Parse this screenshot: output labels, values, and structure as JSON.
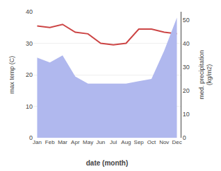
{
  "chart_data": {
    "type": "line",
    "categories": [
      "Jan",
      "Feb",
      "Mar",
      "Apr",
      "May",
      "Jun",
      "Jul",
      "Aug",
      "Sep",
      "Oct",
      "Nov",
      "Dec"
    ],
    "series": [
      {
        "type": "area",
        "axis": "y2",
        "color": "#b0b8ee",
        "values": [
          34,
          32,
          35,
          26,
          23,
          23,
          23,
          23,
          24,
          25,
          37,
          51
        ]
      },
      {
        "type": "line",
        "color": "#cc4444",
        "values": [
          35.5,
          35.0,
          36.0,
          33.5,
          33.0,
          30.0,
          29.5,
          30.0,
          34.5,
          34.5,
          33.5,
          33.0
        ]
      }
    ],
    "x_label": "date (month)",
    "y_label": "max temp (C)",
    "y2_label": "med. precipitation\n(kg/m2)",
    "ylim": [
      0,
      40
    ],
    "yticks": [
      0,
      10,
      20,
      30,
      40
    ],
    "y2lim": [
      0,
      53.5
    ],
    "y2ticks": [
      0,
      10,
      20,
      30,
      40,
      50
    ],
    "grid": true
  }
}
